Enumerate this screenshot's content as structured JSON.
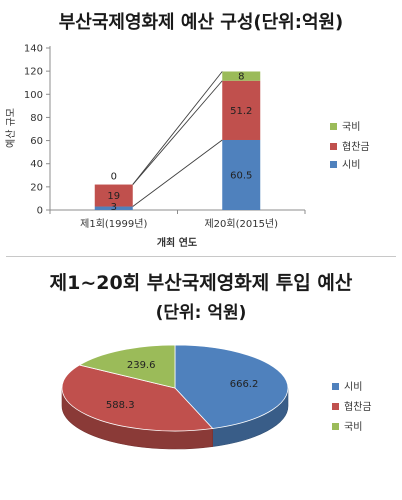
{
  "charts": {
    "budget": {
      "title": "부산국제영화제 예산 구성(단위:억원)",
      "chart_data": {
        "type": "bar",
        "stacked": true,
        "categories": [
          "제1회(1999년)",
          "제20회(2015년)"
        ],
        "series": [
          {
            "name": "시비",
            "values": [
              3,
              60.5
            ],
            "color": "#4f81bd"
          },
          {
            "name": "협찬금",
            "values": [
              19,
              51.2
            ],
            "color": "#c0504d"
          },
          {
            "name": "국비",
            "values": [
              0,
              8
            ],
            "color": "#9bbb59"
          }
        ],
        "xlabel": "개최 연도",
        "ylabel": "예산 규모",
        "ylim": [
          0,
          140
        ],
        "yticks": [
          0,
          20,
          40,
          60,
          80,
          100,
          120,
          140
        ],
        "grid": false,
        "legend": "right"
      }
    },
    "total": {
      "title": "제1~20회 부산국제영화제 투입 예산",
      "subtitle": "(단위: 억원)",
      "chart_data": {
        "type": "pie",
        "style": "3d",
        "labels": [
          "시비",
          "협찬금",
          "국비"
        ],
        "values": [
          666.2,
          588.3,
          239.6
        ],
        "colors": [
          "#4f81bd",
          "#c0504d",
          "#9bbb59"
        ],
        "legend": "right"
      }
    }
  }
}
